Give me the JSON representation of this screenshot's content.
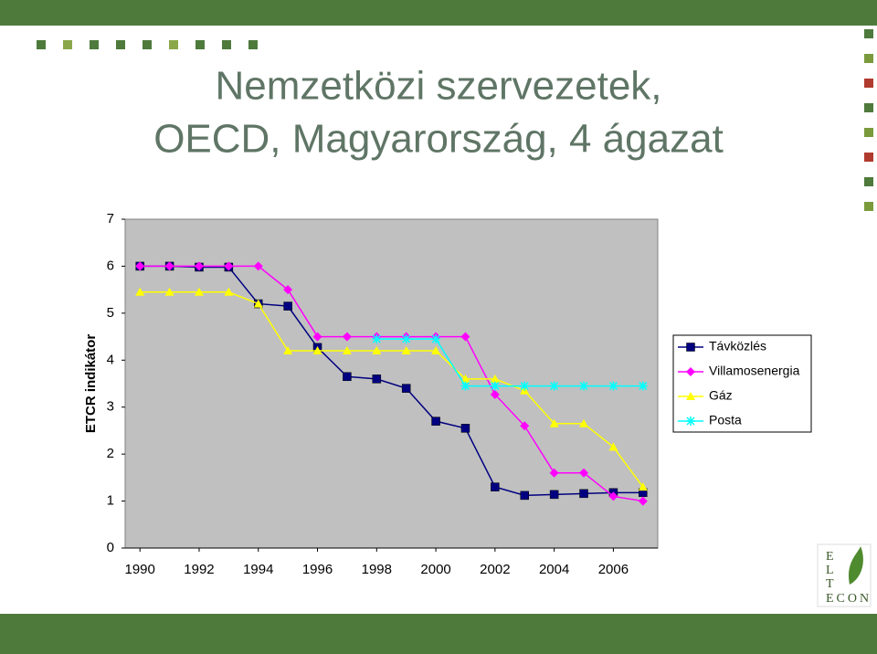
{
  "title_lines": [
    "Nemzetközi szervezetek,",
    "OECD, Magyarország, 4 ágazat"
  ],
  "logo": [
    "E",
    "L",
    "T",
    "ECON"
  ],
  "chart_data": {
    "type": "line",
    "y_label": "ETCR indikátor",
    "x": [
      1990,
      1991,
      1992,
      1993,
      1994,
      1995,
      1996,
      1997,
      1998,
      1999,
      2000,
      2001,
      2002,
      2003,
      2004,
      2005,
      2006,
      2007
    ],
    "series": [
      {
        "name": "Távközlés",
        "color": "#000080",
        "marker": "square",
        "values": [
          6,
          6,
          5.98,
          5.98,
          5.2,
          5.15,
          4.27,
          3.65,
          3.6,
          3.4,
          2.7,
          2.55,
          1.3,
          1.12,
          1.14,
          1.16,
          1.18,
          1.18
        ]
      },
      {
        "name": "Villamosenergia",
        "color": "#ff00ff",
        "marker": "diamond",
        "values": [
          6,
          6,
          6,
          6,
          6,
          5.5,
          4.5,
          4.5,
          4.5,
          4.5,
          4.5,
          4.5,
          3.27,
          2.6,
          1.6,
          1.6,
          1.1,
          1.0
        ]
      },
      {
        "name": "Gáz",
        "color": "#ffff00",
        "marker": "triangle",
        "values": [
          5.45,
          5.45,
          5.45,
          5.45,
          5.2,
          4.2,
          4.2,
          4.2,
          4.2,
          4.2,
          4.2,
          3.6,
          3.6,
          3.35,
          2.65,
          2.65,
          2.15,
          1.3
        ]
      },
      {
        "name": "Posta",
        "color": "#00ffff",
        "marker": "asterisk",
        "values": [
          null,
          null,
          null,
          null,
          null,
          null,
          null,
          null,
          4.45,
          4.45,
          4.45,
          3.45,
          3.45,
          3.45,
          3.45,
          3.45,
          3.45,
          3.45
        ]
      }
    ],
    "xlim": [
      1989.5,
      2007.5
    ],
    "xticks": [
      1990,
      1992,
      1994,
      1996,
      1998,
      2000,
      2002,
      2004,
      2006
    ],
    "ylim": [
      0,
      7
    ],
    "yticks": [
      0,
      1,
      2,
      3,
      4,
      5,
      6,
      7
    ],
    "grid": false,
    "legend": "right",
    "plot_background": "#c0c0c0"
  }
}
